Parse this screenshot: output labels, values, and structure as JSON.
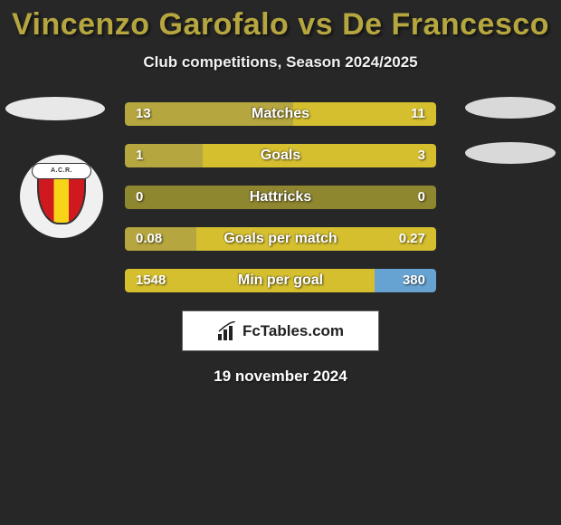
{
  "title": {
    "player1": "Vincenzo Garofalo",
    "vs": "vs",
    "player2": "De Francesco",
    "color": "#b6a63f"
  },
  "subtitle": "Club competitions, Season 2024/2025",
  "crest_label": "A.C.R.",
  "colors": {
    "left_bar": "#b6a63f",
    "right_bar": "#d5bf2f",
    "full_bar_olive": "#8f8630",
    "full_bar_yellow": "#d5bf2f",
    "bg": "#272727"
  },
  "stats": [
    {
      "label": "Matches",
      "left_val": "13",
      "right_val": "11",
      "left_pct": 54.2,
      "right_pct": 45.8,
      "left_color": "#b6a63f",
      "right_color": "#d5bf2f",
      "full": false
    },
    {
      "label": "Goals",
      "left_val": "1",
      "right_val": "3",
      "left_pct": 25.0,
      "right_pct": 75.0,
      "left_color": "#b6a63f",
      "right_color": "#d5bf2f",
      "full": false
    },
    {
      "label": "Hattricks",
      "left_val": "0",
      "right_val": "0",
      "left_pct": 0,
      "right_pct": 0,
      "left_color": "#8f8630",
      "right_color": "#8f8630",
      "full": true,
      "full_color": "#8f8630"
    },
    {
      "label": "Goals per match",
      "left_val": "0.08",
      "right_val": "0.27",
      "left_pct": 22.9,
      "right_pct": 77.1,
      "left_color": "#b6a63f",
      "right_color": "#d5bf2f",
      "full": false
    },
    {
      "label": "Min per goal",
      "left_val": "1548",
      "right_val": "380",
      "left_pct": 80.3,
      "right_pct": 19.7,
      "left_color": "#d5bf2f",
      "right_color": "#66a3d2",
      "full": false
    }
  ],
  "brand": "FcTables.com",
  "date": "19 november 2024"
}
